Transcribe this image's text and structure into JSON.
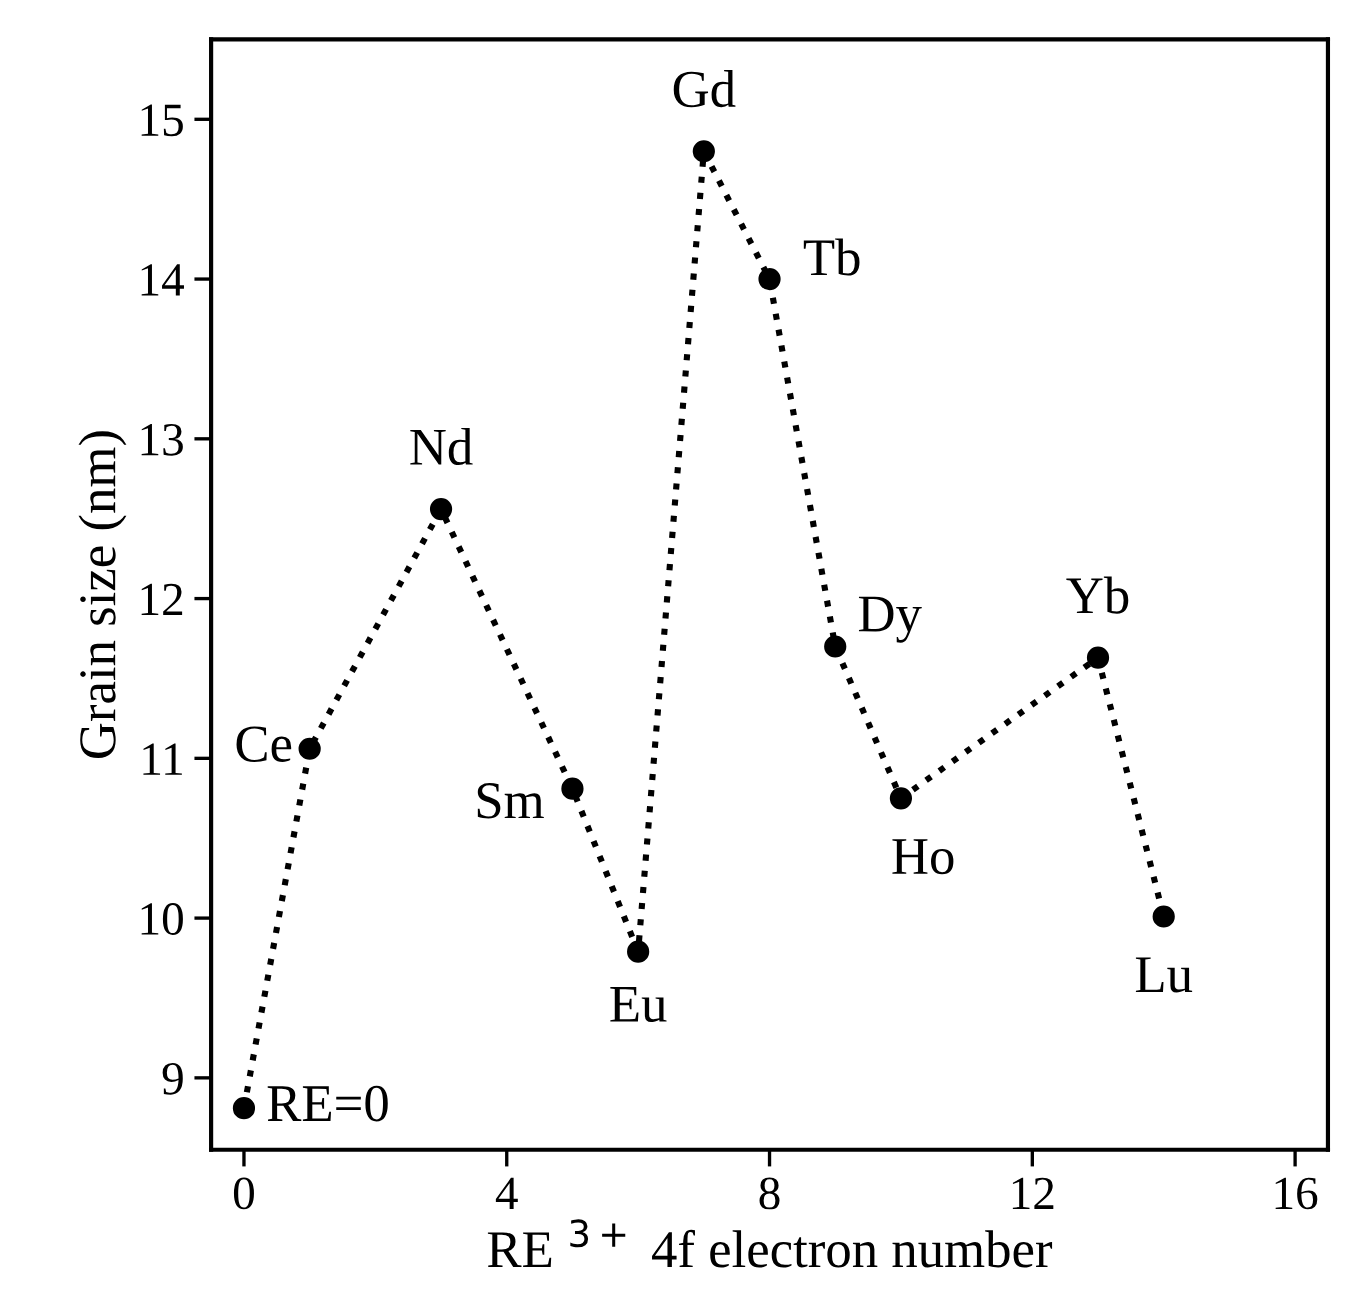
{
  "chart_data": {
    "type": "line",
    "xlabel": "RE $^{3+}$ 4f electron number",
    "ylabel": "Grain size (nm)",
    "x": [
      0,
      1,
      3,
      5,
      6,
      7,
      8,
      9,
      10,
      13,
      14
    ],
    "series": [
      {
        "color": "#000000",
        "values": [
          8.81,
          11.06,
          12.56,
          10.81,
          9.79,
          14.8,
          14.0,
          11.7,
          10.75,
          11.63,
          10.01
        ]
      }
    ],
    "xlim": [
      -0.5,
      16.5
    ],
    "ylim": [
      8.55,
      15.5
    ],
    "xticks": [
      0,
      4,
      8,
      12,
      16
    ],
    "yticks": [
      9,
      10,
      11,
      12,
      13,
      14,
      15
    ],
    "marker": "circle",
    "line_style": "dotted",
    "grid": false,
    "legend": false,
    "annotations": [
      {
        "text": "RE=0",
        "x": 0,
        "y": 8.81
      },
      {
        "text": "Ce",
        "x": 1,
        "y": 11.06
      },
      {
        "text": "Nd",
        "x": 3,
        "y": 12.56
      },
      {
        "text": "Sm",
        "x": 5,
        "y": 10.81
      },
      {
        "text": "Eu",
        "x": 6,
        "y": 9.79
      },
      {
        "text": "Gd",
        "x": 7,
        "y": 14.8
      },
      {
        "text": "Tb",
        "x": 8,
        "y": 14.0
      },
      {
        "text": "Dy",
        "x": 9,
        "y": 11.7
      },
      {
        "text": "Ho",
        "x": 10,
        "y": 10.75
      },
      {
        "text": "Yb",
        "x": 13,
        "y": 11.63
      },
      {
        "text": "Lu",
        "x": 14,
        "y": 10.01
      }
    ]
  }
}
